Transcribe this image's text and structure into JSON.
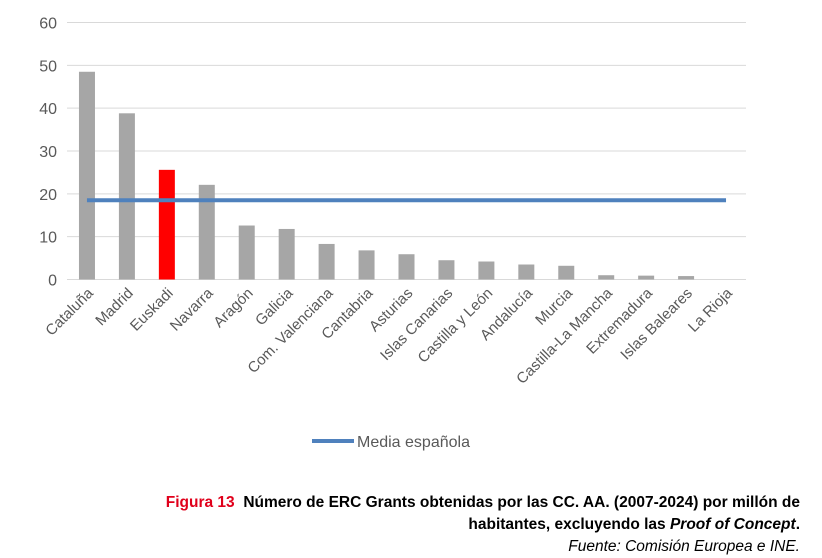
{
  "chart_data": {
    "type": "bar",
    "categories": [
      "Cataluña",
      "Madrid",
      "Euskadi",
      "Navarra",
      "Aragón",
      "Galicia",
      "Com. Valenciana",
      "Cantabria",
      "Asturias",
      "Islas Canarias",
      "Castilla y León",
      "Andalucía",
      "Murcia",
      "Castilla-La Mancha",
      "Extremadura",
      "Islas Baleares",
      "La Rioja"
    ],
    "values": [
      48.5,
      38.8,
      25.6,
      22.1,
      12.6,
      11.8,
      8.3,
      6.8,
      5.9,
      4.5,
      4.2,
      3.5,
      3.2,
      1.0,
      0.9,
      0.8,
      0
    ],
    "highlight_index": 2,
    "bar_color": "#a6a6a6",
    "highlight_color": "#ff0000",
    "grid_color": "#d9d9d9",
    "ylim": [
      0,
      60
    ],
    "yticks": [
      0,
      10,
      20,
      30,
      40,
      50,
      60
    ],
    "reference_line": {
      "name": "Media española",
      "value": 18.5,
      "color": "#4f81bd"
    },
    "legend": "bottom",
    "xlabel": "",
    "ylabel": ""
  },
  "caption": {
    "label": "Figura 13",
    "title_part1": "Número de ERC Grants obtenidas por las CC. AA. (2007-2024) por millón de",
    "title_part2": "habitantes, excluyendo las ",
    "title_italic": "Proof of Concept",
    "title_end": ".",
    "source": "Fuente: Comisión Europea e INE."
  }
}
